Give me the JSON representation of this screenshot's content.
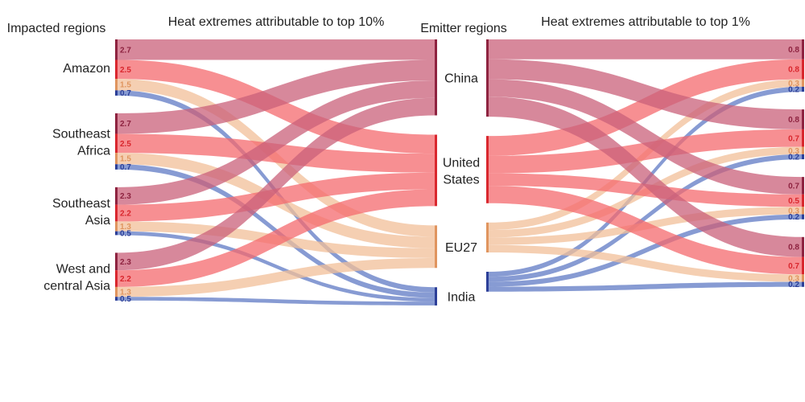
{
  "headers": {
    "impacted": "Impacted regions",
    "left_title": "Heat extremes attributable to top 10%",
    "emitter": "Emitter regions",
    "right_title": "Heat extremes attributable to top 1%"
  },
  "colors": {
    "China": "#c9607a",
    "United States": "#f46a6e",
    "EU27": "#f2bf98",
    "India": "#5f79c4",
    "text": {
      "China": "#8e2340",
      "United States": "#d9272e",
      "EU27": "#e0955f",
      "India": "#2c3f98"
    }
  },
  "impacted_regions": [
    {
      "id": "amazon",
      "lines": [
        "Amazon"
      ]
    },
    {
      "id": "se-africa",
      "lines": [
        "Southeast",
        "Africa"
      ]
    },
    {
      "id": "se-asia",
      "lines": [
        "Southeast",
        "Asia"
      ]
    },
    {
      "id": "wc-asia",
      "lines": [
        "West and",
        "central Asia"
      ]
    }
  ],
  "emitter_regions": [
    {
      "id": "china",
      "key": "China",
      "lines": [
        "China"
      ]
    },
    {
      "id": "us",
      "key": "United States",
      "lines": [
        "United",
        "States"
      ]
    },
    {
      "id": "eu27",
      "key": "EU27",
      "lines": [
        "EU27"
      ]
    },
    {
      "id": "india",
      "key": "India",
      "lines": [
        "India"
      ]
    }
  ],
  "chart_data": {
    "type": "sankey",
    "emitters": [
      "China",
      "United States",
      "EU27",
      "India"
    ],
    "regions": [
      "Amazon",
      "Southeast Africa",
      "Southeast Asia",
      "West and central Asia"
    ],
    "top10": {
      "Amazon": [
        2.7,
        2.5,
        1.5,
        0.7
      ],
      "Southeast Africa": [
        2.7,
        2.5,
        1.5,
        0.7
      ],
      "Southeast Asia": [
        2.3,
        2.2,
        1.3,
        0.5
      ],
      "West and central Asia": [
        2.3,
        2.2,
        1.3,
        0.5
      ]
    },
    "top10_labels": {
      "Amazon": [
        "2.7",
        "2.5",
        "1.5",
        "0.7"
      ],
      "Southeast Africa": [
        "2.7",
        "2.5",
        "1.5",
        "0.7"
      ],
      "Southeast Asia": [
        "2.3",
        "2.2",
        "1.3",
        "0.5"
      ],
      "West and central Asia": [
        "2.3",
        "2.2",
        "1.3",
        "0.5"
      ]
    },
    "top1": {
      "Amazon": [
        0.8,
        0.8,
        0.3,
        0.2
      ],
      "Southeast Africa": [
        0.8,
        0.7,
        0.3,
        0.2
      ],
      "Southeast Asia": [
        0.7,
        0.5,
        0.3,
        0.2
      ],
      "West and central Asia": [
        0.8,
        0.7,
        0.3,
        0.2
      ]
    },
    "top1_labels": {
      "Amazon": [
        "0.8",
        "0.8",
        "0.3",
        "0.2"
      ],
      "Southeast Africa": [
        "0.8",
        "0.7",
        "0.3",
        "0.2"
      ],
      "Southeast Asia": [
        "0.7",
        "0.5",
        "0.3",
        "0.2"
      ],
      "West and central Asia": [
        "0.8",
        "0.7",
        "0.3",
        "0.2"
      ]
    }
  }
}
